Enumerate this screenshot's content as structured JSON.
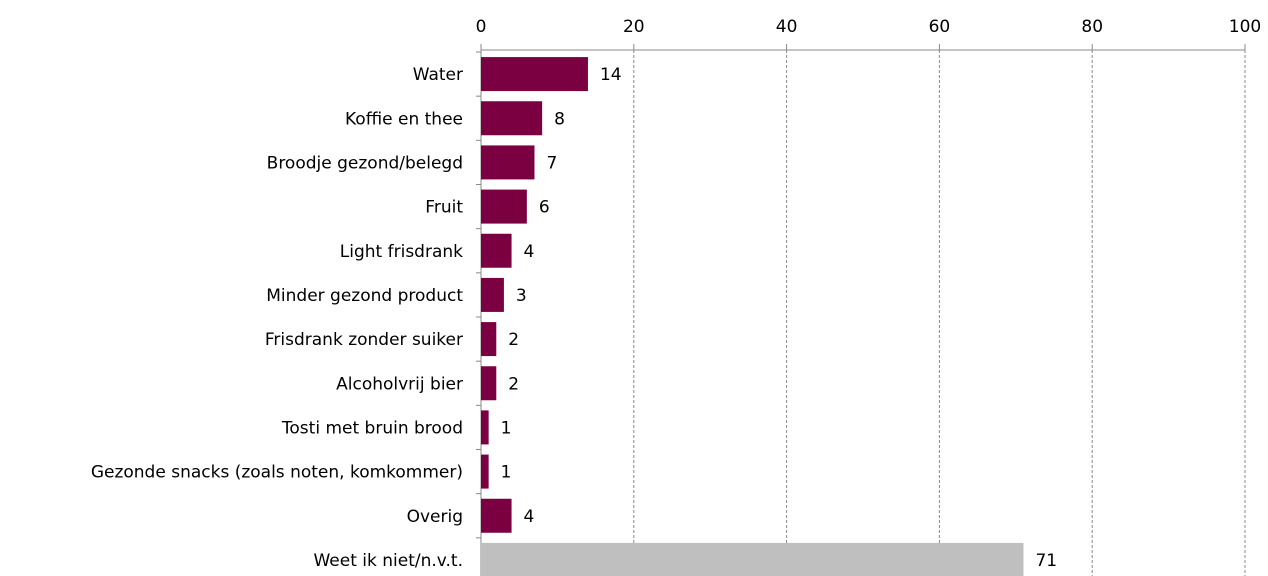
{
  "chart_data": {
    "type": "bar",
    "orientation": "horizontal",
    "categories": [
      "Water",
      "Koffie en thee",
      "Broodje gezond/belegd",
      "Fruit",
      "Light frisdrank",
      "Minder gezond product",
      "Frisdrank zonder suiker",
      "Alcoholvrij bier",
      "Tosti met bruin brood",
      "Gezonde snacks (zoals noten, komkommer)",
      "Overig",
      "Weet ik niet/n.v.t."
    ],
    "values": [
      14,
      8,
      7,
      6,
      4,
      3,
      2,
      2,
      1,
      1,
      4,
      71
    ],
    "colors": [
      "#7b0041",
      "#7b0041",
      "#7b0041",
      "#7b0041",
      "#7b0041",
      "#7b0041",
      "#7b0041",
      "#7b0041",
      "#7b0041",
      "#7b0041",
      "#7b0041",
      "#bfbfbf"
    ],
    "xlim": [
      0,
      100
    ],
    "xticks": [
      0,
      20,
      40,
      60,
      80,
      100
    ],
    "grid": true
  }
}
